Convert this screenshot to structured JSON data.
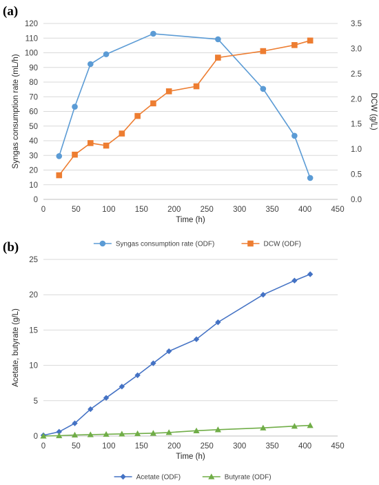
{
  "colors": {
    "syngas": "#5B9BD5",
    "dcw": "#ED7D31",
    "acetate": "#4472C4",
    "butyrate": "#70AD47",
    "grid": "#D9D9D9",
    "axis": "#BFBFBF"
  },
  "chart_data": [
    {
      "panel_label": "(a)",
      "type": "line",
      "xlabel": "Time (h)",
      "ylabel": "Syngas consumption rate (mL/h)",
      "y2label": "DCW (g/L)",
      "xlim": [
        0,
        450
      ],
      "x_ticks": [
        0,
        50,
        100,
        150,
        200,
        250,
        300,
        350,
        400,
        450
      ],
      "ylim": [
        0,
        120
      ],
      "y_ticks": [
        0,
        10,
        20,
        30,
        40,
        50,
        60,
        70,
        80,
        90,
        100,
        110,
        120
      ],
      "y2lim": [
        0,
        3.5
      ],
      "y2_ticks": [
        "0.0",
        "0.5",
        "1.0",
        "1.5",
        "2.0",
        "2.5",
        "3.0",
        "3.5"
      ],
      "grid": true,
      "legend_position": "bottom",
      "series": [
        {
          "name": "Syngas consumption rate (ODF)",
          "axis": "left",
          "marker": "circle",
          "x": [
            24,
            48,
            72,
            96,
            168,
            267,
            336,
            384,
            408
          ],
          "y": [
            29.5,
            63.2,
            92.3,
            99,
            113,
            109.2,
            75.4,
            43.4,
            14.6
          ]
        },
        {
          "name": "DCW (ODF)",
          "axis": "right",
          "marker": "square",
          "x": [
            24,
            48,
            72,
            96,
            120,
            144,
            168,
            192,
            234,
            267,
            336,
            384,
            408
          ],
          "y": [
            0.48,
            0.89,
            1.12,
            1.07,
            1.31,
            1.66,
            1.91,
            2.15,
            2.25,
            2.82,
            2.95,
            3.07,
            3.16
          ]
        }
      ]
    },
    {
      "panel_label": "(b)",
      "type": "line",
      "xlabel": "Time (h)",
      "ylabel": "Acetate, butyrate (g/L)",
      "xlim": [
        0,
        450
      ],
      "x_ticks": [
        0,
        50,
        100,
        150,
        200,
        250,
        300,
        350,
        400,
        450
      ],
      "ylim": [
        0,
        25
      ],
      "y_ticks": [
        0,
        5,
        10,
        15,
        20,
        25
      ],
      "grid": true,
      "legend_position": "bottom",
      "series": [
        {
          "name": "Acetate (ODF)",
          "marker": "diamond",
          "x": [
            0,
            24,
            48,
            72,
            96,
            120,
            144,
            168,
            192,
            234,
            267,
            336,
            384,
            408
          ],
          "y": [
            0.1,
            0.6,
            1.8,
            3.8,
            5.4,
            7.0,
            8.6,
            10.3,
            12.0,
            13.7,
            16.1,
            20.0,
            22.0,
            22.9
          ]
        },
        {
          "name": "Butyrate (ODF)",
          "marker": "triangle",
          "x": [
            0,
            24,
            48,
            72,
            96,
            120,
            144,
            168,
            192,
            234,
            267,
            336,
            384,
            408
          ],
          "y": [
            0.0,
            0.05,
            0.15,
            0.2,
            0.25,
            0.3,
            0.35,
            0.4,
            0.5,
            0.75,
            0.9,
            1.15,
            1.4,
            1.5
          ]
        }
      ]
    }
  ]
}
